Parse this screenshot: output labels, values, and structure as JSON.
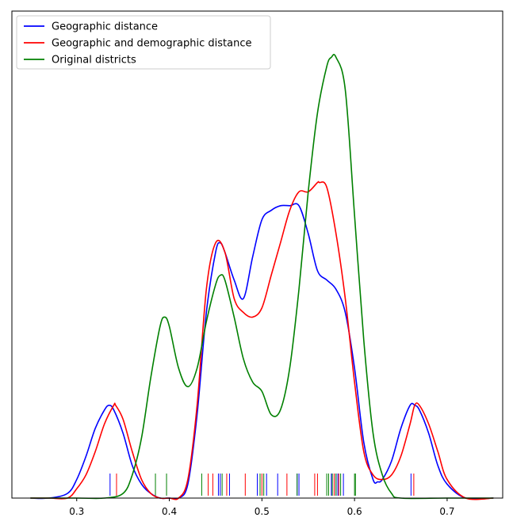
{
  "chart_data": {
    "type": "line",
    "title": "",
    "xlabel": "",
    "ylabel": "",
    "xlim": [
      0.23,
      0.76
    ],
    "ylim": [
      0,
      1
    ],
    "xticks": [
      "0.3",
      "0.4",
      "0.5",
      "0.6",
      "0.7"
    ],
    "y_tick_labels_shown": false,
    "grid": false,
    "legend_position": "top-left",
    "series": [
      {
        "name": "Geographic distance",
        "color": "#0000ff",
        "x": [
          0.25,
          0.27,
          0.29,
          0.3,
          0.31,
          0.32,
          0.33,
          0.335,
          0.34,
          0.35,
          0.36,
          0.37,
          0.38,
          0.39,
          0.4,
          0.41,
          0.42,
          0.43,
          0.44,
          0.45,
          0.455,
          0.46,
          0.47,
          0.48,
          0.49,
          0.5,
          0.51,
          0.52,
          0.53,
          0.54,
          0.55,
          0.56,
          0.57,
          0.58,
          0.59,
          0.6,
          0.61,
          0.62,
          0.625,
          0.63,
          0.64,
          0.65,
          0.66,
          0.665,
          0.67,
          0.68,
          0.69,
          0.7,
          0.72,
          0.75
        ],
        "values": [
          0.0,
          0.0,
          0.01,
          0.04,
          0.09,
          0.15,
          0.19,
          0.2,
          0.19,
          0.14,
          0.07,
          0.03,
          0.01,
          0.0,
          0.0,
          0.0,
          0.03,
          0.18,
          0.4,
          0.53,
          0.55,
          0.53,
          0.47,
          0.43,
          0.52,
          0.6,
          0.62,
          0.63,
          0.63,
          0.63,
          0.57,
          0.49,
          0.47,
          0.45,
          0.4,
          0.28,
          0.12,
          0.04,
          0.035,
          0.04,
          0.08,
          0.15,
          0.2,
          0.2,
          0.19,
          0.14,
          0.07,
          0.03,
          0.0,
          0.0
        ]
      },
      {
        "name": "Geographic and demographic distance",
        "color": "#ff0000",
        "x": [
          0.25,
          0.27,
          0.29,
          0.3,
          0.31,
          0.32,
          0.33,
          0.34,
          0.342,
          0.35,
          0.36,
          0.37,
          0.38,
          0.39,
          0.4,
          0.41,
          0.42,
          0.43,
          0.44,
          0.45,
          0.46,
          0.47,
          0.48,
          0.49,
          0.5,
          0.51,
          0.52,
          0.53,
          0.54,
          0.55,
          0.56,
          0.562,
          0.57,
          0.58,
          0.59,
          0.6,
          0.61,
          0.62,
          0.63,
          0.64,
          0.65,
          0.66,
          0.665,
          0.67,
          0.68,
          0.69,
          0.7,
          0.72,
          0.75
        ],
        "values": [
          0.0,
          0.0,
          0.0,
          0.02,
          0.05,
          0.1,
          0.16,
          0.2,
          0.2,
          0.17,
          0.1,
          0.04,
          0.01,
          0.0,
          0.0,
          0.0,
          0.04,
          0.2,
          0.45,
          0.55,
          0.53,
          0.43,
          0.4,
          0.39,
          0.41,
          0.48,
          0.55,
          0.62,
          0.66,
          0.66,
          0.68,
          0.68,
          0.67,
          0.57,
          0.43,
          0.25,
          0.1,
          0.05,
          0.04,
          0.05,
          0.09,
          0.16,
          0.2,
          0.2,
          0.16,
          0.1,
          0.04,
          0.0,
          0.0
        ]
      },
      {
        "name": "Original districts",
        "color": "#008000",
        "x": [
          0.25,
          0.3,
          0.33,
          0.35,
          0.36,
          0.37,
          0.38,
          0.39,
          0.395,
          0.4,
          0.41,
          0.42,
          0.43,
          0.44,
          0.45,
          0.455,
          0.46,
          0.47,
          0.48,
          0.49,
          0.5,
          0.51,
          0.52,
          0.53,
          0.54,
          0.55,
          0.56,
          0.57,
          0.575,
          0.58,
          0.59,
          0.6,
          0.61,
          0.62,
          0.63,
          0.64,
          0.65,
          0.7,
          0.75
        ],
        "values": [
          0.0,
          0.0,
          0.0,
          0.01,
          0.05,
          0.13,
          0.26,
          0.37,
          0.39,
          0.37,
          0.28,
          0.24,
          0.28,
          0.38,
          0.46,
          0.48,
          0.47,
          0.39,
          0.3,
          0.25,
          0.23,
          0.18,
          0.19,
          0.28,
          0.45,
          0.66,
          0.83,
          0.93,
          0.95,
          0.95,
          0.88,
          0.61,
          0.34,
          0.14,
          0.05,
          0.01,
          0.0,
          0.0,
          0.0
        ]
      }
    ],
    "rug": {
      "Geographic distance": [
        0.336,
        0.453,
        0.455,
        0.465,
        0.495,
        0.505,
        0.517,
        0.538,
        0.54,
        0.575,
        0.58,
        0.582,
        0.588,
        0.661
      ],
      "Geographic and demographic distance": [
        0.343,
        0.442,
        0.447,
        0.462,
        0.482,
        0.5,
        0.527,
        0.557,
        0.56,
        0.578,
        0.583,
        0.664
      ],
      "Original districts": [
        0.385,
        0.397,
        0.435,
        0.457,
        0.498,
        0.502,
        0.538,
        0.57,
        0.572,
        0.576,
        0.58,
        0.585,
        0.6,
        0.601
      ]
    }
  }
}
